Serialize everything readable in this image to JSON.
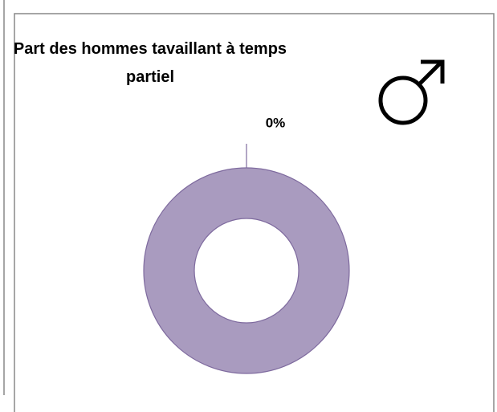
{
  "chart_data": {
    "type": "donut",
    "title": "Part des hommes tavaillant à temps partiel",
    "categories": [
      null,
      null
    ],
    "values": [
      0,
      100
    ],
    "value_labels": [
      "0%",
      null
    ],
    "colors": [
      "#a99bbf",
      "#a99bbf"
    ]
  }
}
